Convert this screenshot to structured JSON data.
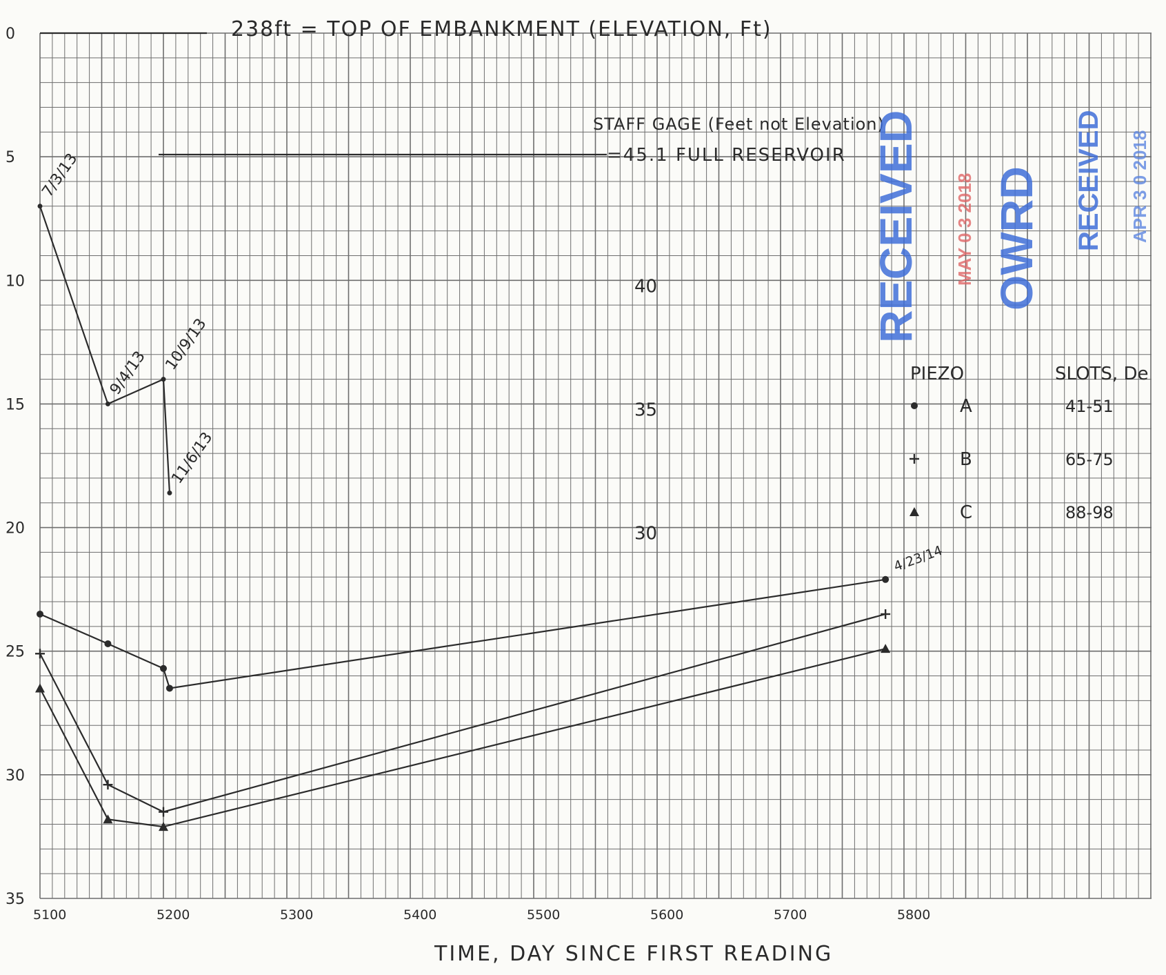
{
  "chart_data": {
    "type": "line",
    "title": "238ft = TOP OF EMBANKMENT (ELEVATION, Ft)",
    "xlabel": "TIME, DAY SINCE FIRST READING",
    "ylabel": "",
    "xlim": [
      5100,
      5900
    ],
    "ylim": [
      35,
      0
    ],
    "x_ticks": [
      5100,
      5200,
      5300,
      5400,
      5500,
      5600,
      5700,
      5800
    ],
    "x_tick_labels": [
      "5100",
      "5200",
      "5300",
      "5400",
      "5500",
      "5600",
      "5700",
      "5800"
    ],
    "y_ticks": [
      0,
      5,
      10,
      15,
      20,
      25,
      30,
      35
    ],
    "y_tick_labels": [
      "0",
      "5",
      "10",
      "15",
      "20",
      "25",
      "30",
      "35"
    ],
    "grid": true,
    "legend_placement": "right",
    "staff_gage": {
      "label": "STAFF GAGE (Feet not Elevation)",
      "full_label": "=45.1 FULL RESERVOIR",
      "ticks": [
        {
          "label": "40",
          "y": 10.2
        },
        {
          "label": "35",
          "y": 15.2
        },
        {
          "label": "30",
          "y": 20.2
        }
      ],
      "series": {
        "name": "Staff gage",
        "x": [
          5100,
          5155,
          5200,
          5205
        ],
        "y": [
          7,
          15,
          14,
          18.6
        ]
      },
      "date_labels": [
        {
          "text": "7/3/13",
          "x": 5100,
          "y": 7
        },
        {
          "text": "9/4/13",
          "x": 5155,
          "y": 15
        },
        {
          "text": "10/9/13",
          "x": 5200,
          "y": 14
        },
        {
          "text": "11/6/13",
          "x": 5205,
          "y": 18.6
        }
      ]
    },
    "series": [
      {
        "name": "A",
        "marker": "dot",
        "slots": "41-51",
        "x": [
          5100,
          5155,
          5200,
          5205,
          5785
        ],
        "y": [
          23.5,
          24.7,
          25.7,
          26.5,
          22.1
        ]
      },
      {
        "name": "B",
        "marker": "plus",
        "slots": "65-75",
        "x": [
          5100,
          5155,
          5200,
          5785
        ],
        "y": [
          25.1,
          30.4,
          31.5,
          23.5
        ]
      },
      {
        "name": "C",
        "marker": "triangle",
        "slots": "88-98",
        "x": [
          5100,
          5155,
          5200,
          5785
        ],
        "y": [
          26.5,
          31.8,
          32.1,
          24.9
        ]
      }
    ],
    "end_label": {
      "text": "4/23/14",
      "x": 5785,
      "y": 22.1
    }
  },
  "legend": {
    "header_piezo": "PIEZO",
    "header_slots": "SLOTS, De"
  },
  "stamps": {
    "received_1": "RECEIVED",
    "received_1_date": "MAY 0 3 2018",
    "owrd": "OWRD",
    "received_2": "RECEIVED",
    "received_2_date": "APR 3 0 2018"
  },
  "colors": {
    "line": "#2b2b2b",
    "grid": "#6d6d6d",
    "stamp_blue": "#3f6ed8",
    "stamp_red": "#e06767"
  }
}
